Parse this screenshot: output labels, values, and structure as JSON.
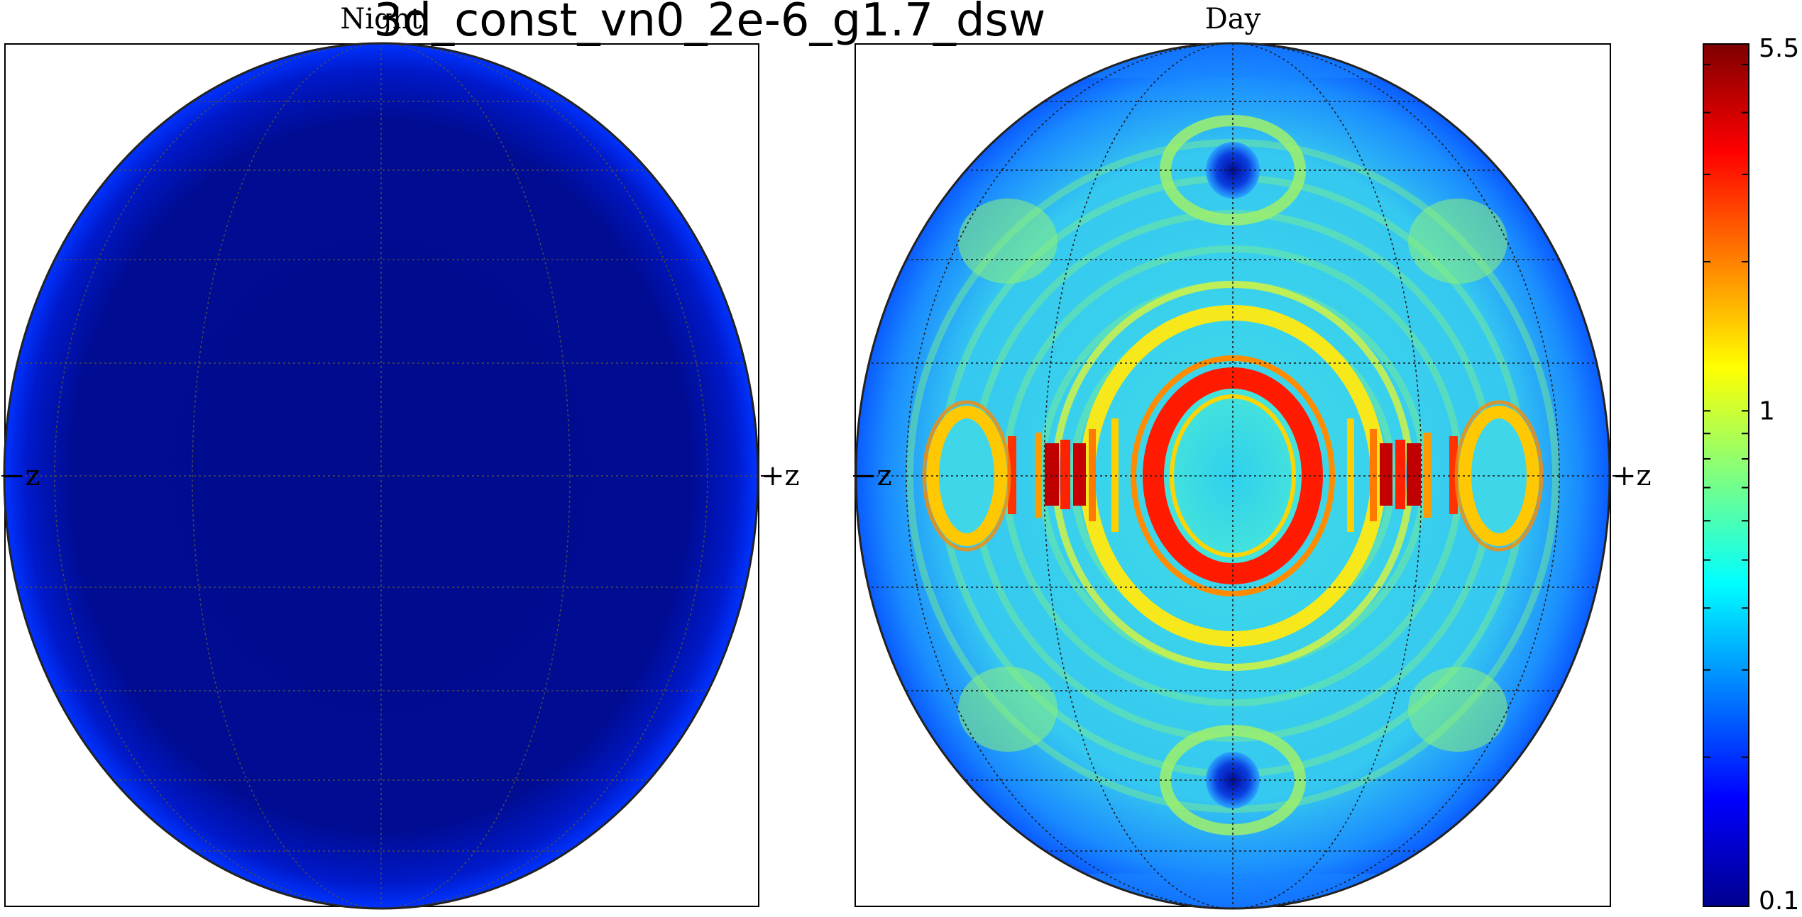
{
  "figure": {
    "title": "3d_const_vn0_2e-6_g1.7_dsw"
  },
  "chart_data": [
    {
      "type": "heatmap",
      "panel": "Night",
      "title": "Night",
      "projection": "orthographic-globe",
      "left_label": "−z",
      "right_label": "+z",
      "grid": true,
      "colormap": "jet",
      "value_summary": "nearly uniform minimum values across the disk",
      "center_value": 0.1,
      "limb_value": 0.2
    },
    {
      "type": "heatmap",
      "panel": "Day",
      "title": "Day",
      "projection": "orthographic-globe",
      "left_label": "−z",
      "right_label": "+z",
      "grid": true,
      "colormap": "jet",
      "features": [
        {
          "name": "central-ring",
          "value": 5.0
        },
        {
          "name": "central-core",
          "value": 0.45
        },
        {
          "name": "side-ring-columns",
          "value": 5.5
        },
        {
          "name": "outer-side-rings",
          "value": 3.0
        },
        {
          "name": "polar-spots",
          "value": 0.15
        },
        {
          "name": "background",
          "value": 0.5
        }
      ]
    }
  ],
  "colorbar": {
    "scale": "log",
    "min": 0.1,
    "max": 5.5,
    "tick_labels": [
      "5.5",
      "1",
      "0.1"
    ],
    "tick_values": [
      5.5,
      1,
      0.1
    ]
  }
}
